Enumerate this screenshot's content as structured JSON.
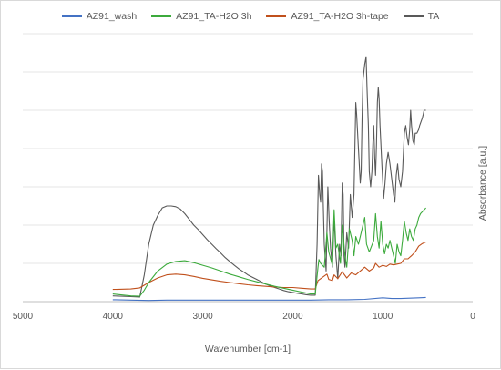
{
  "chart_data": {
    "type": "line",
    "xlabel": "Wavenumber [cm-1]",
    "ylabel": "Absorbance [a.u.]",
    "xlim": [
      5000,
      0
    ],
    "x_reversed": true,
    "ylim": [
      0,
      7
    ],
    "yticks_shown": false,
    "grid": "horizontal",
    "legend_position": "top",
    "x_ticks": [
      "5000",
      "4000",
      "3000",
      "2000",
      "1000",
      "0"
    ],
    "series": [
      {
        "name": "AZ91_wash",
        "color": "#4472c4",
        "points": [
          [
            4000,
            0.05
          ],
          [
            3800,
            0.04
          ],
          [
            3600,
            0.03
          ],
          [
            3400,
            0.04
          ],
          [
            3200,
            0.04
          ],
          [
            3000,
            0.04
          ],
          [
            2800,
            0.04
          ],
          [
            2600,
            0.04
          ],
          [
            2400,
            0.04
          ],
          [
            2200,
            0.04
          ],
          [
            2000,
            0.04
          ],
          [
            1800,
            0.04
          ],
          [
            1600,
            0.05
          ],
          [
            1400,
            0.05
          ],
          [
            1200,
            0.06
          ],
          [
            1000,
            0.1
          ],
          [
            900,
            0.08
          ],
          [
            800,
            0.08
          ],
          [
            700,
            0.09
          ],
          [
            600,
            0.1
          ],
          [
            520,
            0.11
          ]
        ]
      },
      {
        "name": "AZ91_TA-H2O 3h",
        "color": "#3caa3c",
        "points": [
          [
            4000,
            0.2
          ],
          [
            3800,
            0.15
          ],
          [
            3700,
            0.14
          ],
          [
            3650,
            0.3
          ],
          [
            3600,
            0.5
          ],
          [
            3500,
            0.8
          ],
          [
            3400,
            0.98
          ],
          [
            3300,
            1.05
          ],
          [
            3200,
            1.07
          ],
          [
            3100,
            1.02
          ],
          [
            3000,
            0.95
          ],
          [
            2900,
            0.88
          ],
          [
            2800,
            0.8
          ],
          [
            2700,
            0.72
          ],
          [
            2600,
            0.65
          ],
          [
            2500,
            0.58
          ],
          [
            2400,
            0.52
          ],
          [
            2300,
            0.46
          ],
          [
            2200,
            0.4
          ],
          [
            2100,
            0.35
          ],
          [
            2000,
            0.3
          ],
          [
            1900,
            0.25
          ],
          [
            1800,
            0.2
          ],
          [
            1750,
            0.2
          ],
          [
            1720,
            0.9
          ],
          [
            1710,
            1.1
          ],
          [
            1690,
            1.0
          ],
          [
            1650,
            0.9
          ],
          [
            1620,
            1.8
          ],
          [
            1600,
            1.3
          ],
          [
            1560,
            0.95
          ],
          [
            1540,
            2.4
          ],
          [
            1520,
            1.4
          ],
          [
            1500,
            1.5
          ],
          [
            1470,
            1.0
          ],
          [
            1450,
            2.0
          ],
          [
            1420,
            1.2
          ],
          [
            1400,
            0.9
          ],
          [
            1370,
            1.9
          ],
          [
            1340,
            1.6
          ],
          [
            1320,
            1.2
          ],
          [
            1300,
            1.7
          ],
          [
            1270,
            1.5
          ],
          [
            1240,
            1.8
          ],
          [
            1200,
            2.2
          ],
          [
            1180,
            1.5
          ],
          [
            1150,
            1.3
          ],
          [
            1100,
            1.6
          ],
          [
            1080,
            2.3
          ],
          [
            1060,
            1.7
          ],
          [
            1040,
            1.4
          ],
          [
            1020,
            2.1
          ],
          [
            1000,
            1.5
          ],
          [
            980,
            1.25
          ],
          [
            960,
            1.5
          ],
          [
            940,
            1.4
          ],
          [
            920,
            1.6
          ],
          [
            900,
            1.4
          ],
          [
            880,
            1.2
          ],
          [
            860,
            1.0
          ],
          [
            840,
            1.5
          ],
          [
            820,
            1.3
          ],
          [
            800,
            1.2
          ],
          [
            780,
            1.6
          ],
          [
            760,
            2.1
          ],
          [
            740,
            1.8
          ],
          [
            720,
            1.6
          ],
          [
            700,
            1.9
          ],
          [
            680,
            1.7
          ],
          [
            660,
            1.6
          ],
          [
            640,
            1.9
          ],
          [
            620,
            2.0
          ],
          [
            600,
            2.2
          ],
          [
            580,
            2.3
          ],
          [
            560,
            2.35
          ],
          [
            540,
            2.4
          ],
          [
            520,
            2.45
          ]
        ]
      },
      {
        "name": "AZ91_TA-H2O 3h-tape",
        "color": "#c0501c",
        "points": [
          [
            4000,
            0.32
          ],
          [
            3800,
            0.33
          ],
          [
            3700,
            0.36
          ],
          [
            3600,
            0.5
          ],
          [
            3500,
            0.62
          ],
          [
            3400,
            0.7
          ],
          [
            3300,
            0.72
          ],
          [
            3200,
            0.7
          ],
          [
            3100,
            0.66
          ],
          [
            3000,
            0.61
          ],
          [
            2900,
            0.57
          ],
          [
            2800,
            0.53
          ],
          [
            2700,
            0.5
          ],
          [
            2600,
            0.47
          ],
          [
            2500,
            0.44
          ],
          [
            2400,
            0.42
          ],
          [
            2300,
            0.4
          ],
          [
            2200,
            0.38
          ],
          [
            2100,
            0.37
          ],
          [
            2000,
            0.37
          ],
          [
            1900,
            0.35
          ],
          [
            1800,
            0.33
          ],
          [
            1750,
            0.33
          ],
          [
            1720,
            0.55
          ],
          [
            1690,
            0.6
          ],
          [
            1620,
            0.72
          ],
          [
            1600,
            0.58
          ],
          [
            1560,
            0.55
          ],
          [
            1540,
            0.7
          ],
          [
            1500,
            0.6
          ],
          [
            1450,
            0.78
          ],
          [
            1400,
            0.62
          ],
          [
            1350,
            0.75
          ],
          [
            1300,
            0.7
          ],
          [
            1240,
            0.82
          ],
          [
            1200,
            0.9
          ],
          [
            1150,
            0.8
          ],
          [
            1100,
            0.88
          ],
          [
            1080,
            1.0
          ],
          [
            1040,
            0.9
          ],
          [
            1000,
            0.95
          ],
          [
            960,
            0.92
          ],
          [
            920,
            0.98
          ],
          [
            880,
            0.96
          ],
          [
            840,
            0.98
          ],
          [
            800,
            1.0
          ],
          [
            760,
            1.12
          ],
          [
            720,
            1.12
          ],
          [
            680,
            1.2
          ],
          [
            640,
            1.3
          ],
          [
            600,
            1.45
          ],
          [
            560,
            1.52
          ],
          [
            520,
            1.56
          ]
        ]
      },
      {
        "name": "TA",
        "color": "#595959",
        "points": [
          [
            4000,
            0.15
          ],
          [
            3800,
            0.13
          ],
          [
            3700,
            0.12
          ],
          [
            3650,
            0.7
          ],
          [
            3600,
            1.5
          ],
          [
            3550,
            2.0
          ],
          [
            3500,
            2.25
          ],
          [
            3450,
            2.45
          ],
          [
            3400,
            2.5
          ],
          [
            3350,
            2.5
          ],
          [
            3300,
            2.48
          ],
          [
            3250,
            2.42
          ],
          [
            3200,
            2.3
          ],
          [
            3150,
            2.15
          ],
          [
            3100,
            2.0
          ],
          [
            3050,
            1.88
          ],
          [
            3000,
            1.75
          ],
          [
            2950,
            1.62
          ],
          [
            2900,
            1.5
          ],
          [
            2850,
            1.38
          ],
          [
            2800,
            1.27
          ],
          [
            2750,
            1.15
          ],
          [
            2700,
            1.05
          ],
          [
            2650,
            0.95
          ],
          [
            2600,
            0.86
          ],
          [
            2550,
            0.78
          ],
          [
            2500,
            0.7
          ],
          [
            2450,
            0.64
          ],
          [
            2400,
            0.58
          ],
          [
            2350,
            0.52
          ],
          [
            2300,
            0.46
          ],
          [
            2250,
            0.41
          ],
          [
            2200,
            0.37
          ],
          [
            2150,
            0.33
          ],
          [
            2100,
            0.29
          ],
          [
            2050,
            0.26
          ],
          [
            2000,
            0.24
          ],
          [
            1950,
            0.22
          ],
          [
            1900,
            0.2
          ],
          [
            1850,
            0.18
          ],
          [
            1800,
            0.17
          ],
          [
            1750,
            0.17
          ],
          [
            1730,
            1.5
          ],
          [
            1715,
            3.3
          ],
          [
            1700,
            2.8
          ],
          [
            1690,
            2.6
          ],
          [
            1680,
            3.6
          ],
          [
            1670,
            3.4
          ],
          [
            1650,
            1.5
          ],
          [
            1630,
            0.8
          ],
          [
            1610,
            3.0
          ],
          [
            1595,
            2.1
          ],
          [
            1580,
            1.4
          ],
          [
            1560,
            0.9
          ],
          [
            1540,
            2.2
          ],
          [
            1520,
            1.2
          ],
          [
            1500,
            0.6
          ],
          [
            1480,
            1.5
          ],
          [
            1465,
            1.2
          ],
          [
            1450,
            3.1
          ],
          [
            1440,
            2.8
          ],
          [
            1430,
            1.2
          ],
          [
            1420,
            0.9
          ],
          [
            1400,
            1.8
          ],
          [
            1380,
            1.4
          ],
          [
            1360,
            2.8
          ],
          [
            1340,
            2.2
          ],
          [
            1320,
            2.8
          ],
          [
            1300,
            5.2
          ],
          [
            1290,
            4.9
          ],
          [
            1270,
            4.0
          ],
          [
            1250,
            3.1
          ],
          [
            1240,
            3.4
          ],
          [
            1230,
            4.8
          ],
          [
            1220,
            5.8
          ],
          [
            1200,
            6.2
          ],
          [
            1185,
            6.4
          ],
          [
            1175,
            5.6
          ],
          [
            1160,
            4.6
          ],
          [
            1150,
            3.4
          ],
          [
            1135,
            3.0
          ],
          [
            1120,
            3.4
          ],
          [
            1110,
            4.1
          ],
          [
            1100,
            4.6
          ],
          [
            1090,
            3.8
          ],
          [
            1080,
            3.3
          ],
          [
            1070,
            4.1
          ],
          [
            1060,
            5.2
          ],
          [
            1050,
            5.6
          ],
          [
            1040,
            5.3
          ],
          [
            1030,
            4.6
          ],
          [
            1010,
            3.6
          ],
          [
            990,
            2.7
          ],
          [
            975,
            3.1
          ],
          [
            960,
            3.6
          ],
          [
            940,
            3.9
          ],
          [
            920,
            3.6
          ],
          [
            900,
            3.2
          ],
          [
            880,
            2.8
          ],
          [
            865,
            2.6
          ],
          [
            850,
            3.3
          ],
          [
            835,
            3.6
          ],
          [
            820,
            3.2
          ],
          [
            800,
            3.0
          ],
          [
            780,
            3.4
          ],
          [
            760,
            4.4
          ],
          [
            745,
            4.6
          ],
          [
            730,
            4.3
          ],
          [
            715,
            4.1
          ],
          [
            700,
            4.5
          ],
          [
            690,
            5.0
          ],
          [
            680,
            4.6
          ],
          [
            665,
            4.2
          ],
          [
            650,
            4.1
          ],
          [
            640,
            4.4
          ],
          [
            620,
            4.4
          ],
          [
            600,
            4.5
          ],
          [
            590,
            4.6
          ],
          [
            575,
            4.7
          ],
          [
            560,
            4.8
          ],
          [
            550,
            4.9
          ],
          [
            540,
            5.0
          ],
          [
            530,
            5.0
          ],
          [
            520,
            5.0
          ]
        ]
      }
    ]
  }
}
